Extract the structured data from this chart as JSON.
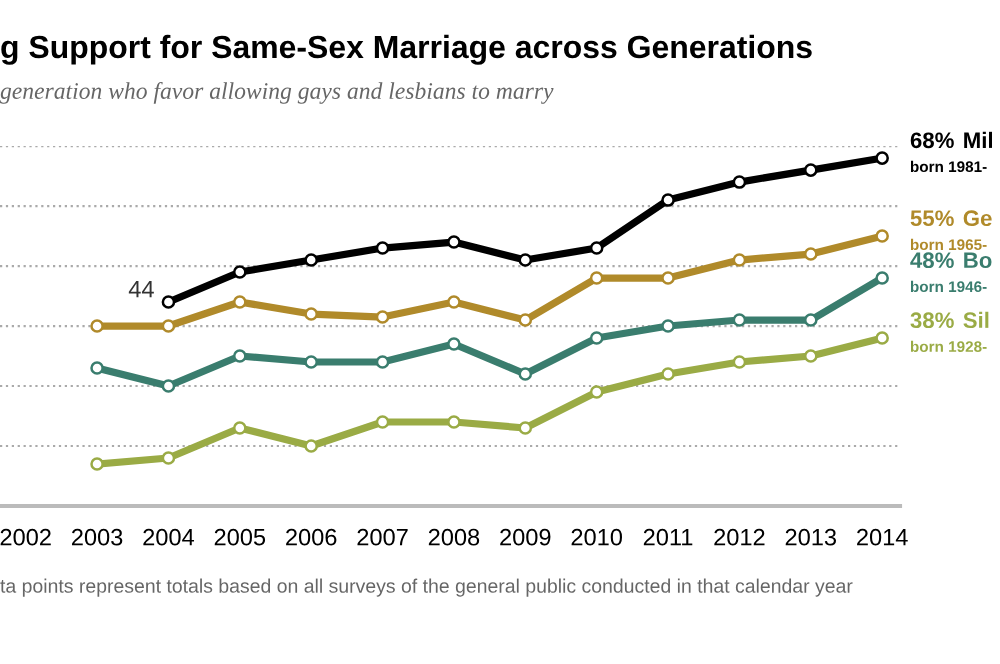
{
  "chart_data": {
    "type": "line",
    "title": "g Support for Same-Sex Marriage across Generations",
    "subtitle": "generation who favor allowing gays and lesbians to marry",
    "x": [
      2003,
      2004,
      2005,
      2006,
      2007,
      2008,
      2009,
      2010,
      2011,
      2012,
      2013,
      2014
    ],
    "series": [
      {
        "name": "Mil",
        "color": "#000000",
        "values": [
          null,
          44,
          49,
          51,
          53,
          54,
          51,
          53,
          61,
          64,
          66,
          68
        ],
        "value_labels": [
          null,
          "44",
          null,
          null,
          null,
          null,
          null,
          null,
          null,
          null,
          null,
          "68%"
        ]
      },
      {
        "name": "Ge",
        "color": "#b08a2a",
        "values": [
          40,
          40,
          44,
          42,
          41.5,
          44,
          41,
          48,
          48,
          51,
          52,
          55
        ],
        "value_labels": [
          null,
          null,
          null,
          null,
          null,
          null,
          null,
          null,
          null,
          null,
          null,
          "55%"
        ]
      },
      {
        "name": "Bo",
        "color": "#3a7d6e",
        "values": [
          33,
          30,
          35,
          34,
          34,
          37,
          32,
          38,
          40,
          41,
          41,
          48
        ],
        "value_labels": [
          null,
          null,
          null,
          null,
          null,
          null,
          null,
          null,
          null,
          null,
          null,
          "48%"
        ]
      },
      {
        "name": "Sil",
        "color": "#9aab45",
        "values": [
          17,
          18,
          23,
          20,
          24,
          24,
          23,
          29,
          32,
          34,
          35,
          38
        ],
        "value_labels": [
          null,
          null,
          null,
          null,
          null,
          null,
          null,
          null,
          null,
          null,
          null,
          "38%"
        ]
      }
    ],
    "xlim": [
      2001.64,
      2014.25
    ],
    "ylim": [
      10,
      70
    ],
    "xticks": [
      2002,
      2003,
      2004,
      2005,
      2006,
      2007,
      2008,
      2009,
      2010,
      2011,
      2012,
      2013,
      2014
    ],
    "yticks": [
      {
        "value": 20,
        "label": null
      },
      {
        "value": 30,
        "label": null
      },
      {
        "value": 40,
        "label": null
      },
      {
        "value": 50,
        "label": null
      },
      {
        "value": 60,
        "label": null
      },
      {
        "value": 70,
        "label": null
      }
    ],
    "grid": "y",
    "tick_labels": "x",
    "marker": "circle",
    "line_style": "solid",
    "annotations": [
      "born 1981-",
      "born 1965-",
      "born 1946-",
      "born 1928-",
      "ta points represent totals based on all surveys of the general public conducted in that calendar year"
    ]
  }
}
